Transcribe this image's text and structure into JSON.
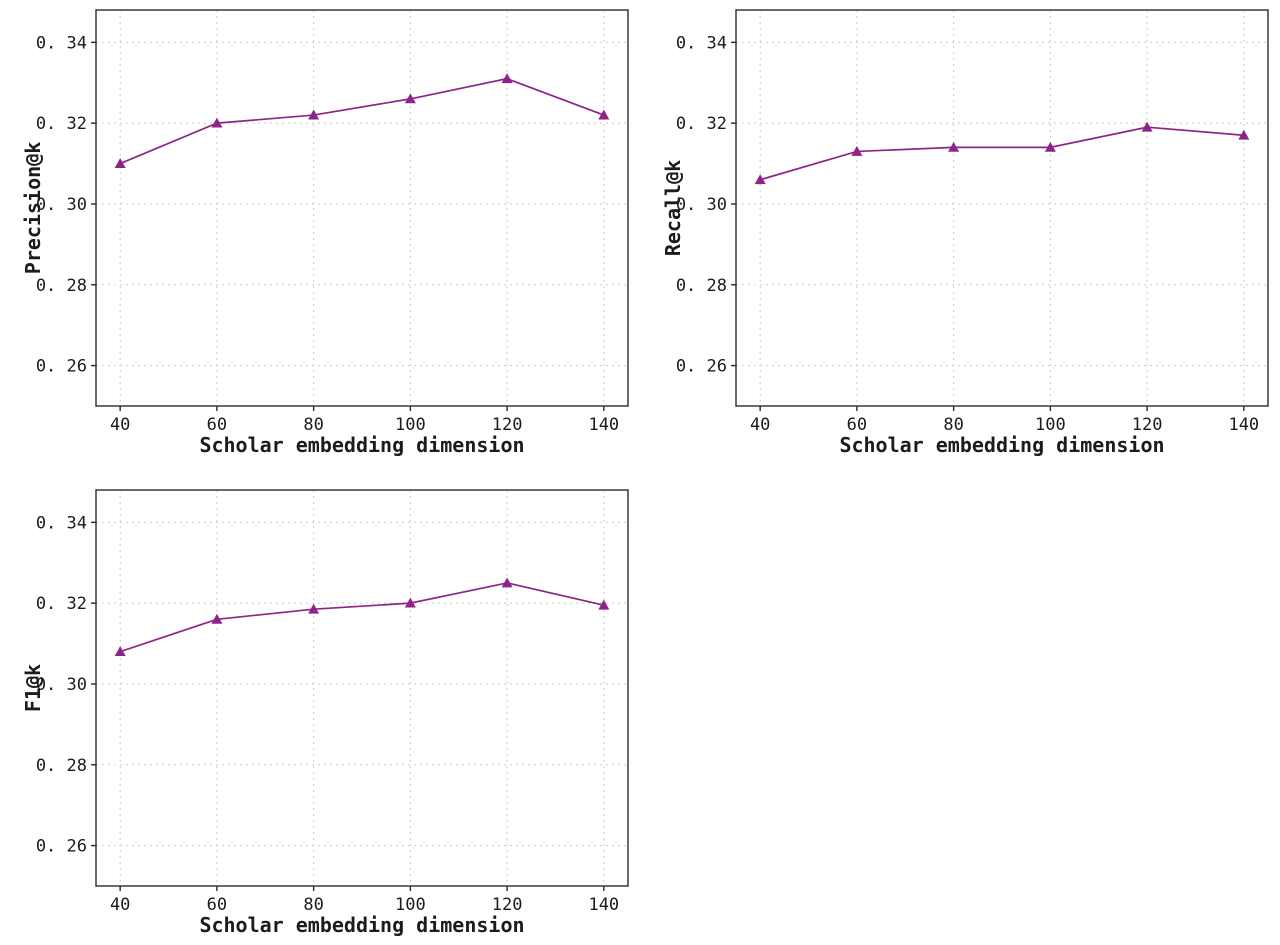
{
  "style": {
    "line_color": "#8e2586",
    "marker_color": "#8e2586",
    "grid_color": "#cbcbcb",
    "axis_color": "#2a2a2a",
    "background": "#ffffff"
  },
  "chart_data": [
    {
      "type": "line",
      "name": "precision",
      "x": [
        40,
        60,
        80,
        100,
        120,
        140
      ],
      "values": [
        0.31,
        0.32,
        0.322,
        0.326,
        0.331,
        0.322
      ],
      "xlabel": "Scholar embedding dimension",
      "ylabel": "Precision@k",
      "xlim": [
        35,
        145
      ],
      "ylim": [
        0.25,
        0.348
      ],
      "xticks": [
        40,
        60,
        80,
        100,
        120,
        140
      ],
      "xtick_labels": [
        "40",
        "60",
        "80",
        "100",
        "120",
        "140"
      ],
      "yticks": [
        0.26,
        0.28,
        0.3,
        0.32,
        0.34
      ],
      "ytick_labels": [
        "0. 26",
        "0. 28",
        "0. 30",
        "0. 32",
        "0. 34"
      ],
      "marker": "triangle",
      "grid": "dashed",
      "legend": "none"
    },
    {
      "type": "line",
      "name": "recall",
      "x": [
        40,
        60,
        80,
        100,
        120,
        140
      ],
      "values": [
        0.306,
        0.313,
        0.314,
        0.314,
        0.319,
        0.317
      ],
      "xlabel": "Scholar embedding dimension",
      "ylabel": "Recall@k",
      "xlim": [
        35,
        145
      ],
      "ylim": [
        0.25,
        0.348
      ],
      "xticks": [
        40,
        60,
        80,
        100,
        120,
        140
      ],
      "xtick_labels": [
        "40",
        "60",
        "80",
        "100",
        "120",
        "140"
      ],
      "yticks": [
        0.26,
        0.28,
        0.3,
        0.32,
        0.34
      ],
      "ytick_labels": [
        "0. 26",
        "0. 28",
        "0. 30",
        "0. 32",
        "0. 34"
      ],
      "marker": "triangle",
      "grid": "dashed",
      "legend": "none"
    },
    {
      "type": "line",
      "name": "f1",
      "x": [
        40,
        60,
        80,
        100,
        120,
        140
      ],
      "values": [
        0.308,
        0.316,
        0.3185,
        0.32,
        0.325,
        0.3195
      ],
      "xlabel": "Scholar embedding dimension",
      "ylabel": "F1@k",
      "xlim": [
        35,
        145
      ],
      "ylim": [
        0.25,
        0.348
      ],
      "xticks": [
        40,
        60,
        80,
        100,
        120,
        140
      ],
      "xtick_labels": [
        "40",
        "60",
        "80",
        "100",
        "120",
        "140"
      ],
      "yticks": [
        0.26,
        0.28,
        0.3,
        0.32,
        0.34
      ],
      "ytick_labels": [
        "0. 26",
        "0. 28",
        "0. 30",
        "0. 32",
        "0. 34"
      ],
      "marker": "triangle",
      "grid": "dashed",
      "legend": "none"
    }
  ]
}
